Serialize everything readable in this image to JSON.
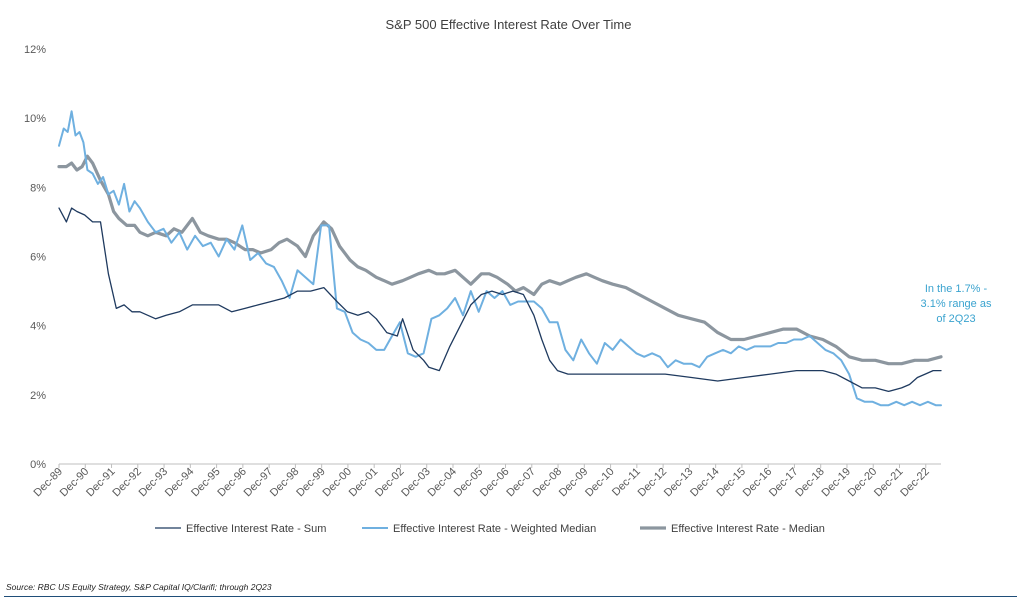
{
  "chart_data": {
    "type": "line",
    "title": "S&P 500 Effective Interest Rate Over Time",
    "xlabel": "",
    "ylabel": "",
    "ylim": [
      0,
      12
    ],
    "y_ticks": [
      "0%",
      "2%",
      "4%",
      "6%",
      "8%",
      "10%",
      "12%"
    ],
    "categories": [
      "Dec-89",
      "Dec-90",
      "Dec-91",
      "Dec-92",
      "Dec-93",
      "Dec-94",
      "Dec-95",
      "Dec-96",
      "Dec-97",
      "Dec-98",
      "Dec-99",
      "Dec-00",
      "Dec-01",
      "Dec-02",
      "Dec-03",
      "Dec-04",
      "Dec-05",
      "Dec-06",
      "Dec-07",
      "Dec-08",
      "Dec-09",
      "Dec-10",
      "Dec-11",
      "Dec-12",
      "Dec-13",
      "Dec-14",
      "Dec-15",
      "Dec-16",
      "Dec-17",
      "Dec-18",
      "Dec-19",
      "Dec-20",
      "Dec-21",
      "Dec-22"
    ],
    "x_end": 2023.5,
    "grid": false,
    "legend_position": "bottom",
    "series": [
      {
        "name": "Effective Interest Rate - Sum",
        "color": "#1f3a5f",
        "width": 1.3,
        "x": [
          1989.92,
          1990.2,
          1990.4,
          1990.6,
          1990.9,
          1991.2,
          1991.5,
          1991.8,
          1992.1,
          1992.4,
          1992.7,
          1993.0,
          1993.3,
          1993.6,
          1994.0,
          1994.5,
          1995.0,
          1995.5,
          1996.0,
          1996.5,
          1997.0,
          1997.5,
          1998.0,
          1998.5,
          1999.0,
          1999.5,
          2000.0,
          2000.5,
          2000.9,
          2001.3,
          2001.7,
          2002.0,
          2002.4,
          2002.8,
          2003.0,
          2003.4,
          2003.8,
          2004.0,
          2004.4,
          2004.8,
          2005.2,
          2005.6,
          2006.0,
          2006.4,
          2006.8,
          2007.2,
          2007.6,
          2008.0,
          2008.3,
          2008.6,
          2008.9,
          2009.3,
          2010.0,
          2011.0,
          2012.0,
          2013.0,
          2014.0,
          2015.0,
          2016.0,
          2017.0,
          2018.0,
          2019.0,
          2019.5,
          2020.0,
          2020.5,
          2021.0,
          2021.5,
          2022.0,
          2022.3,
          2022.6,
          2022.9,
          2023.2,
          2023.5
        ],
        "values": [
          7.4,
          7.0,
          7.4,
          7.3,
          7.2,
          7.0,
          7.0,
          5.5,
          4.5,
          4.6,
          4.4,
          4.4,
          4.3,
          4.2,
          4.3,
          4.4,
          4.6,
          4.6,
          4.6,
          4.4,
          4.5,
          4.6,
          4.7,
          4.8,
          5.0,
          5.0,
          5.1,
          4.7,
          4.4,
          4.3,
          4.4,
          4.2,
          3.8,
          3.7,
          4.2,
          3.3,
          3.0,
          2.8,
          2.7,
          3.4,
          4.0,
          4.6,
          4.9,
          5.0,
          4.9,
          5.0,
          4.9,
          4.3,
          3.6,
          3.0,
          2.7,
          2.6,
          2.6,
          2.6,
          2.6,
          2.6,
          2.5,
          2.4,
          2.5,
          2.6,
          2.7,
          2.7,
          2.6,
          2.4,
          2.2,
          2.2,
          2.1,
          2.2,
          2.3,
          2.5,
          2.6,
          2.7,
          2.7
        ]
      },
      {
        "name": "Effective Interest Rate - Weighted Median",
        "color": "#6fb0e0",
        "width": 2.0,
        "x": [
          1989.92,
          1990.1,
          1990.25,
          1990.4,
          1990.55,
          1990.7,
          1990.85,
          1991.0,
          1991.2,
          1991.4,
          1991.6,
          1991.8,
          1992.0,
          1992.2,
          1992.4,
          1992.6,
          1992.8,
          1993.0,
          1993.3,
          1993.6,
          1993.9,
          1994.2,
          1994.5,
          1994.8,
          1995.1,
          1995.4,
          1995.7,
          1996.0,
          1996.3,
          1996.6,
          1996.9,
          1997.2,
          1997.5,
          1997.8,
          1998.1,
          1998.4,
          1998.7,
          1999.0,
          1999.3,
          1999.6,
          1999.9,
          2000.2,
          2000.5,
          2000.8,
          2001.1,
          2001.4,
          2001.7,
          2002.0,
          2002.3,
          2002.6,
          2002.9,
          2003.2,
          2003.5,
          2003.8,
          2004.1,
          2004.4,
          2004.7,
          2005.0,
          2005.3,
          2005.6,
          2005.9,
          2006.2,
          2006.5,
          2006.8,
          2007.1,
          2007.4,
          2007.7,
          2008.0,
          2008.3,
          2008.6,
          2008.9,
          2009.2,
          2009.5,
          2009.8,
          2010.1,
          2010.4,
          2010.7,
          2011.0,
          2011.3,
          2011.6,
          2011.9,
          2012.2,
          2012.5,
          2012.8,
          2013.1,
          2013.4,
          2013.7,
          2014.0,
          2014.3,
          2014.6,
          2014.9,
          2015.2,
          2015.5,
          2015.8,
          2016.1,
          2016.4,
          2016.7,
          2017.0,
          2017.3,
          2017.6,
          2017.9,
          2018.2,
          2018.5,
          2018.8,
          2019.1,
          2019.4,
          2019.7,
          2020.0,
          2020.3,
          2020.6,
          2020.9,
          2021.2,
          2021.5,
          2021.8,
          2022.1,
          2022.4,
          2022.7,
          2023.0,
          2023.3,
          2023.5
        ],
        "values": [
          9.2,
          9.7,
          9.6,
          10.2,
          9.5,
          9.6,
          9.3,
          8.5,
          8.4,
          8.1,
          8.3,
          7.8,
          7.9,
          7.5,
          8.1,
          7.3,
          7.6,
          7.4,
          7.0,
          6.7,
          6.8,
          6.4,
          6.7,
          6.2,
          6.6,
          6.3,
          6.4,
          6.0,
          6.5,
          6.2,
          6.9,
          5.9,
          6.1,
          5.8,
          5.7,
          5.3,
          4.8,
          5.6,
          5.4,
          5.2,
          6.9,
          6.9,
          4.5,
          4.4,
          3.8,
          3.6,
          3.5,
          3.3,
          3.3,
          3.7,
          4.1,
          3.2,
          3.1,
          3.2,
          4.2,
          4.3,
          4.5,
          4.8,
          4.3,
          5.0,
          4.4,
          5.0,
          4.8,
          5.0,
          4.6,
          4.7,
          4.7,
          4.7,
          4.5,
          4.1,
          4.1,
          3.3,
          3.0,
          3.6,
          3.2,
          2.9,
          3.5,
          3.3,
          3.6,
          3.4,
          3.2,
          3.1,
          3.2,
          3.1,
          2.8,
          3.0,
          2.9,
          2.9,
          2.8,
          3.1,
          3.2,
          3.3,
          3.2,
          3.4,
          3.3,
          3.4,
          3.4,
          3.4,
          3.5,
          3.5,
          3.6,
          3.6,
          3.7,
          3.5,
          3.3,
          3.2,
          3.0,
          2.6,
          1.9,
          1.8,
          1.8,
          1.7,
          1.7,
          1.8,
          1.7,
          1.8,
          1.7,
          1.8,
          1.7,
          1.7
        ]
      },
      {
        "name": "Effective Interest Rate - Median",
        "color": "#8c969f",
        "width": 3.2,
        "x": [
          1989.92,
          1990.2,
          1990.4,
          1990.6,
          1990.8,
          1991.0,
          1991.2,
          1991.5,
          1991.8,
          1992.0,
          1992.2,
          1992.5,
          1992.8,
          1993.0,
          1993.3,
          1993.6,
          1994.0,
          1994.3,
          1994.6,
          1995.0,
          1995.3,
          1995.6,
          1996.0,
          1996.3,
          1996.6,
          1997.0,
          1997.3,
          1997.6,
          1998.0,
          1998.3,
          1998.6,
          1999.0,
          1999.3,
          1999.6,
          2000.0,
          2000.3,
          2000.6,
          2001.0,
          2001.3,
          2001.6,
          2002.0,
          2002.3,
          2002.6,
          2003.0,
          2003.3,
          2003.6,
          2004.0,
          2004.3,
          2004.6,
          2005.0,
          2005.3,
          2005.6,
          2006.0,
          2006.3,
          2006.6,
          2007.0,
          2007.3,
          2007.6,
          2008.0,
          2008.3,
          2008.6,
          2009.0,
          2009.3,
          2009.6,
          2010.0,
          2010.3,
          2010.6,
          2011.0,
          2011.5,
          2012.0,
          2012.5,
          2013.0,
          2013.5,
          2014.0,
          2014.5,
          2015.0,
          2015.5,
          2016.0,
          2016.5,
          2017.0,
          2017.5,
          2018.0,
          2018.5,
          2019.0,
          2019.5,
          2020.0,
          2020.5,
          2021.0,
          2021.5,
          2022.0,
          2022.5,
          2023.0,
          2023.5
        ],
        "values": [
          8.6,
          8.6,
          8.7,
          8.5,
          8.6,
          8.9,
          8.7,
          8.2,
          7.8,
          7.3,
          7.1,
          6.9,
          6.9,
          6.7,
          6.6,
          6.7,
          6.6,
          6.8,
          6.7,
          7.1,
          6.7,
          6.6,
          6.5,
          6.5,
          6.4,
          6.2,
          6.2,
          6.1,
          6.2,
          6.4,
          6.5,
          6.3,
          6.0,
          6.6,
          7.0,
          6.8,
          6.3,
          5.9,
          5.7,
          5.6,
          5.4,
          5.3,
          5.2,
          5.3,
          5.4,
          5.5,
          5.6,
          5.5,
          5.5,
          5.6,
          5.4,
          5.2,
          5.5,
          5.5,
          5.4,
          5.2,
          5.0,
          5.1,
          4.9,
          5.2,
          5.3,
          5.2,
          5.3,
          5.4,
          5.5,
          5.4,
          5.3,
          5.2,
          5.1,
          4.9,
          4.7,
          4.5,
          4.3,
          4.2,
          4.1,
          3.8,
          3.6,
          3.6,
          3.7,
          3.8,
          3.9,
          3.9,
          3.7,
          3.6,
          3.4,
          3.1,
          3.0,
          3.0,
          2.9,
          2.9,
          3.0,
          3.0,
          3.1
        ]
      }
    ],
    "annotation": "In the 1.7% -\n3.1% range as\nof 2Q23",
    "annotation_color": "#3aa3cf"
  },
  "footer": {
    "source": "Source: RBC US Equity Strategy, S&P Capital IQ/Clarifi; through 2Q23"
  }
}
